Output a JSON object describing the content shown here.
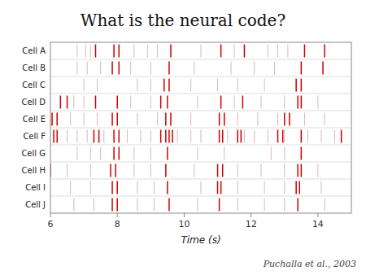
{
  "chart_data": {
    "type": "raster",
    "title": "What is the neural code?",
    "annotations": [
      "Puchalla et al., 2003"
    ],
    "xlabel": "Time (s)",
    "categories": [
      "Cell A",
      "Cell B",
      "Cell C",
      "Cell D",
      "Cell E",
      "Cell F",
      "Cell G",
      "Cell H",
      "Cell I",
      "Cell J"
    ],
    "xlim": [
      6.0,
      15.0
    ],
    "xticks": [
      6,
      8,
      10,
      12,
      14
    ],
    "grid": false,
    "series": [
      {
        "color": "#cc9999",
        "values": [
          [
            6.8,
            7.05,
            7.2,
            8.5,
            8.9,
            9.2,
            10.5,
            11.5,
            12.5,
            12.8,
            13.1
          ],
          [
            6.8,
            7.1,
            7.5,
            8.4,
            9.0,
            10.3,
            11.4,
            12.1,
            12.7
          ],
          [
            7.0,
            7.4,
            8.6,
            9.0,
            10.2,
            11.0,
            11.6,
            12.4
          ],
          [
            6.7,
            7.0,
            8.4,
            9.0,
            10.4,
            11.5,
            12.3,
            13.0,
            14.0
          ],
          [
            6.6,
            7.0,
            7.4,
            8.6,
            9.2,
            10.2,
            11.6,
            12.2,
            12.8,
            13.6,
            14.2
          ],
          [
            6.5,
            6.8,
            7.1,
            7.6,
            8.3,
            8.7,
            9.0,
            9.8,
            10.2,
            10.5,
            11.3,
            11.8,
            12.1,
            12.5,
            13.0,
            13.7,
            14.1,
            14.5
          ],
          [
            6.8,
            7.2,
            7.5,
            8.5,
            9.0,
            10.4,
            11.2,
            12.6,
            13.0
          ],
          [
            6.5,
            7.2,
            8.5,
            9.0,
            10.3,
            11.6,
            12.3,
            13.0,
            14.0
          ],
          [
            6.6,
            7.2,
            8.6,
            9.1,
            10.5,
            11.6,
            12.4,
            13.0,
            14.1
          ],
          [
            6.7,
            7.3,
            8.6,
            9.1,
            10.4,
            11.6,
            12.4,
            13.0,
            14.2
          ]
        ]
      },
      {
        "color": "#cc0000",
        "values": [
          [
            7.35,
            7.9,
            8.05,
            9.6,
            11.1,
            11.8,
            13.6,
            14.2
          ],
          [
            7.85,
            8.05,
            9.55,
            13.5,
            14.15
          ],
          [
            9.4,
            9.55,
            13.35,
            13.5
          ],
          [
            6.3,
            6.5,
            7.35,
            8.0,
            9.3,
            9.5,
            11.1,
            11.75,
            13.4,
            13.5
          ],
          [
            6.05,
            6.2,
            7.85,
            8.0,
            9.45,
            9.6,
            11.05,
            11.2,
            13.0,
            13.15
          ],
          [
            6.1,
            6.2,
            7.3,
            7.45,
            7.9,
            8.05,
            9.3,
            9.45,
            9.55,
            9.65,
            11.05,
            11.15,
            11.6,
            11.7,
            12.8,
            12.95,
            13.5,
            14.7
          ],
          [
            7.9,
            8.05,
            9.5,
            13.5
          ],
          [
            6.0,
            7.8,
            7.95,
            9.45,
            11.0,
            11.15,
            13.4,
            13.5
          ],
          [
            7.85,
            8.0,
            9.5,
            11.0,
            11.1,
            13.35,
            13.45
          ],
          [
            7.85,
            8.0,
            9.55,
            11.05,
            13.4
          ]
        ]
      }
    ]
  }
}
